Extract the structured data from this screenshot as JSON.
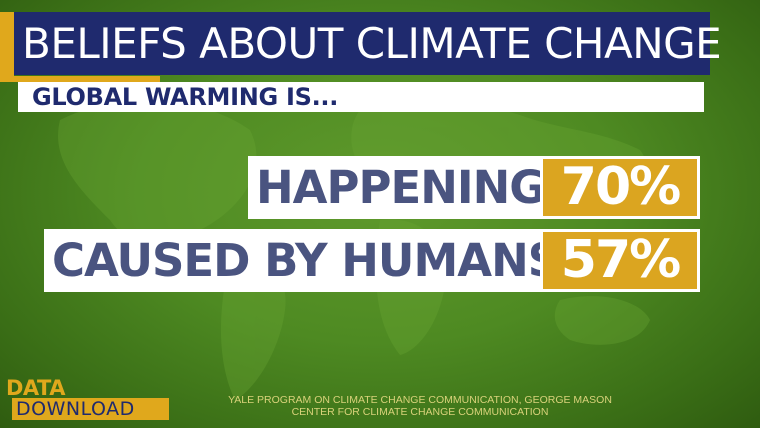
{
  "title": "BELIEFS ABOUT CLIMATE CHANGE",
  "subtitle": "GLOBAL WARMING IS...",
  "rows": [
    {
      "label": "HAPPENING",
      "value": "70%"
    },
    {
      "label": "CAUSED BY HUMANS",
      "value": "57%"
    }
  ],
  "logo": {
    "line1": "DATA_",
    "line2": "DOWNLOAD"
  },
  "source_lines": [
    "YALE PROGRAM ON CLIMATE CHANGE COMMUNICATION, GEORGE MASON",
    "CENTER FOR CLIMATE CHANGE COMMUNICATION"
  ],
  "colors": {
    "title_bg": "#1f2a6e",
    "accent": "#e0a81c",
    "value_bg": "#dba520",
    "label_text": "#4a5480",
    "background": "#4e8a22"
  }
}
